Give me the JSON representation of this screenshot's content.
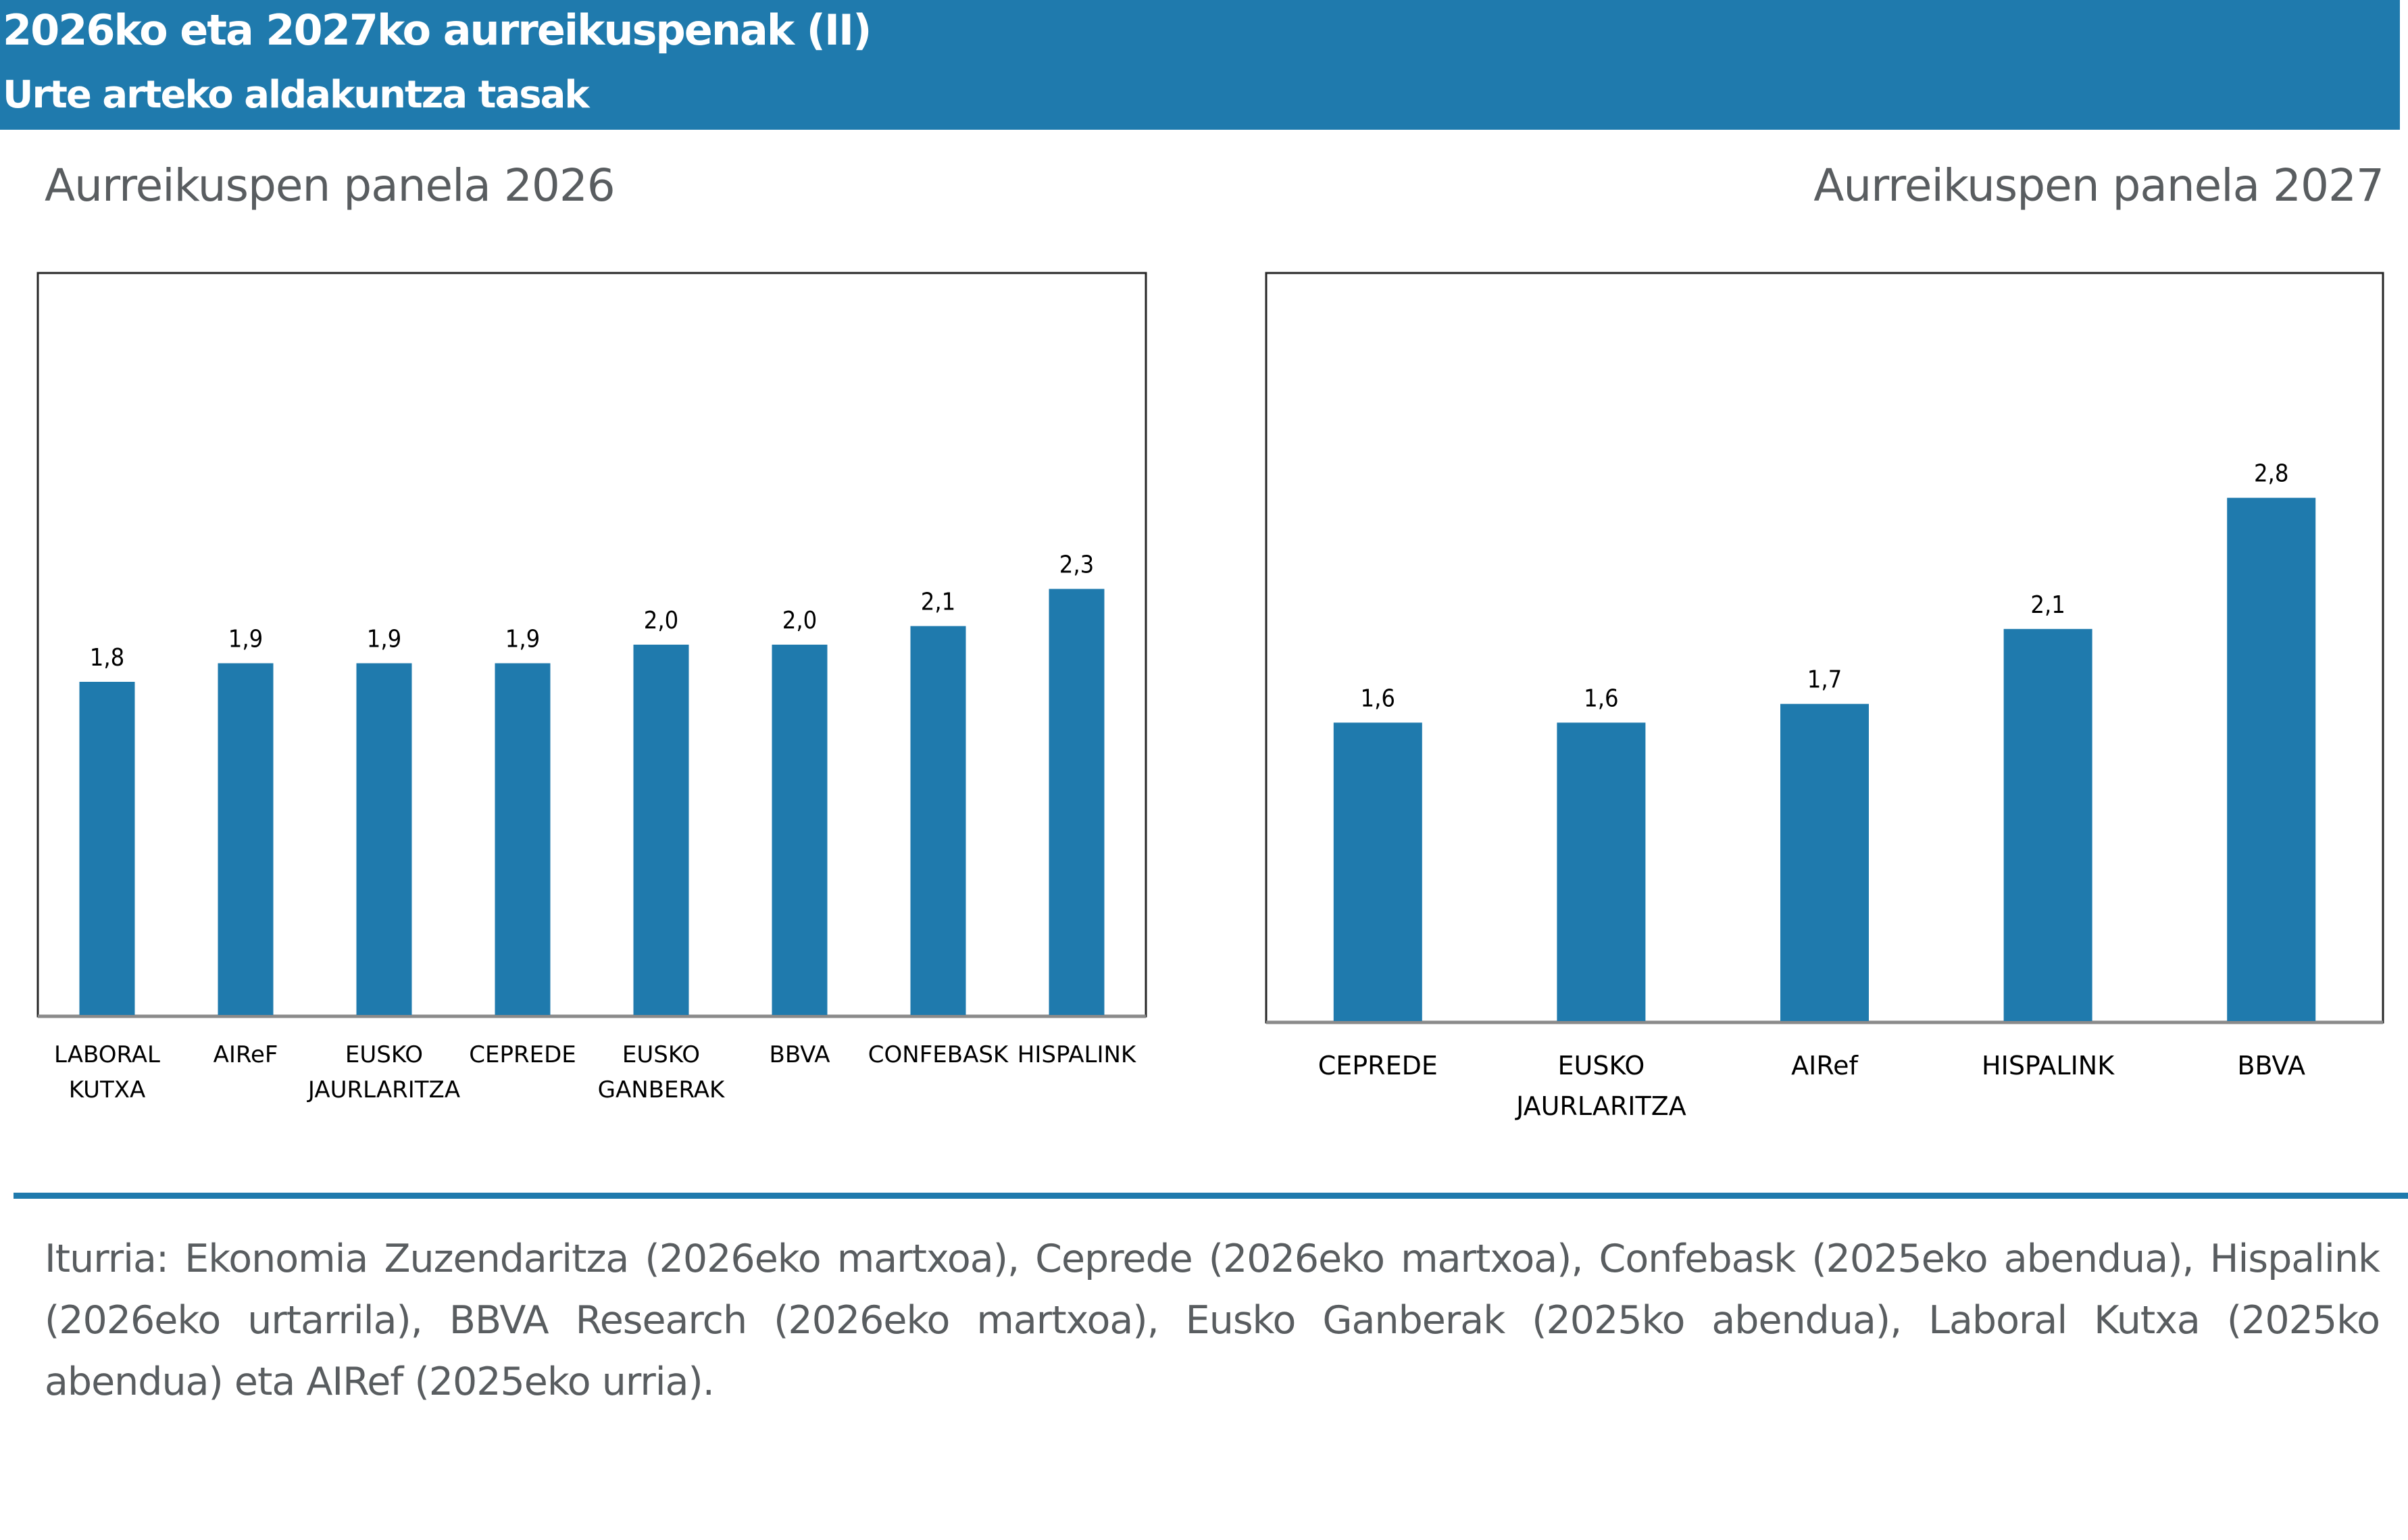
{
  "header": {
    "title": "2026ko eta 2027ko aurreikuspenak (II)",
    "subtitle": "Urte arteko aldakuntza tasak"
  },
  "colors": {
    "accent": "#1f7aad",
    "bar": "#1f7aad",
    "title_text": "#595d60"
  },
  "panels": {
    "left_title": "Aurreikuspen panela 2026",
    "right_title": "Aurreikuspen panela 2027"
  },
  "chart_data": [
    {
      "type": "bar",
      "title": "Aurreikuspen panela 2026",
      "xlabel": "",
      "ylabel": "",
      "ylim": [
        0,
        4
      ],
      "grid": false,
      "categories": [
        [
          "LABORAL",
          "KUTXA"
        ],
        [
          "AIReF"
        ],
        [
          "EUSKO",
          "JAURLARITZA"
        ],
        [
          "CEPREDE"
        ],
        [
          "EUSKO",
          "GANBERAK"
        ],
        [
          "BBVA"
        ],
        [
          "CONFEBASK"
        ],
        [
          "HISPALINK"
        ]
      ],
      "values": [
        1.8,
        1.9,
        1.9,
        1.9,
        2.0,
        2.0,
        2.1,
        2.3
      ],
      "value_labels": [
        "1,8",
        "1,9",
        "1,9",
        "1,9",
        "2,0",
        "2,0",
        "2,1",
        "2,3"
      ]
    },
    {
      "type": "bar",
      "title": "Aurreikuspen panela 2027",
      "xlabel": "",
      "ylabel": "",
      "ylim": [
        0,
        4
      ],
      "grid": false,
      "categories": [
        [
          "CEPREDE"
        ],
        [
          "EUSKO",
          "JAURLARITZA"
        ],
        [
          "AIRef"
        ],
        [
          "HISPALINK"
        ],
        [
          "BBVA"
        ]
      ],
      "values": [
        1.6,
        1.6,
        1.7,
        2.1,
        2.8
      ],
      "value_labels": [
        "1,6",
        "1,6",
        "1,7",
        "2,1",
        "2,8"
      ]
    }
  ],
  "source": "Iturria: Ekonomia Zuzendaritza (2026eko martxoa), Ceprede (2026eko martxoa), Confebask (2025eko abendua), Hispalink (2026eko urtarrila), BBVA Research (2026eko martxoa), Eusko Ganberak (2025ko abendua), Laboral Kutxa (2025ko abendua) eta AIRef (2025eko urria)."
}
